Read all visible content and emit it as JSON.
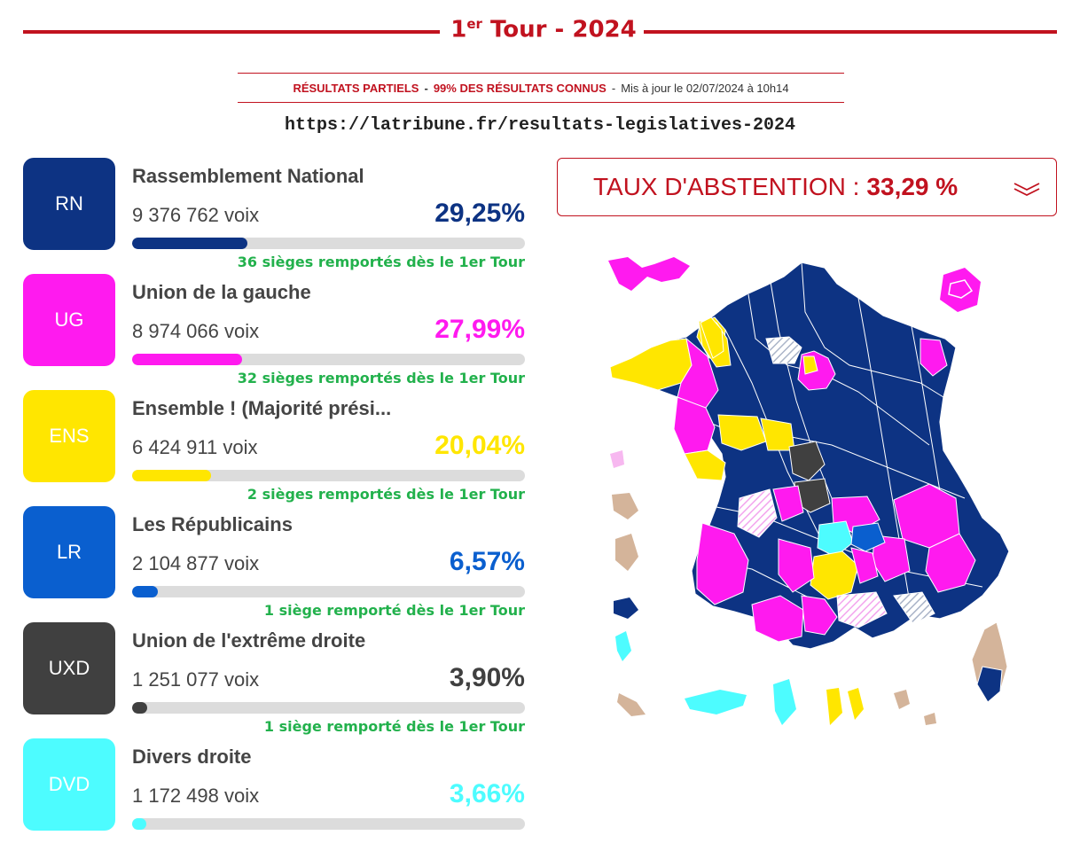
{
  "header": {
    "title_prefix": "1",
    "title_sup": "er",
    "title_suffix": " Tour - 2024",
    "status_partial": "RÉSULTATS PARTIELS",
    "status_sep1": "-",
    "status_known": "99% DES RÉSULTATS CONNUS",
    "status_sep2": "-",
    "status_updated": "Mis à jour le 02/07/2024 à 10h14",
    "url": "https://latribune.fr/resultats-legislatives-2024"
  },
  "abstention": {
    "label": "TAUX D'ABSTENTION :",
    "value": "33,29 %"
  },
  "parties": [
    {
      "abbr": "RN",
      "name": "Rassemblement National",
      "votes": "9 376 762 voix",
      "pct": "29,25%",
      "pct_value": 29.25,
      "seats": "36 sièges remportés dès le 1er Tour",
      "color": "#0d3383"
    },
    {
      "abbr": "UG",
      "name": "Union de la gauche",
      "votes": "8 974 066 voix",
      "pct": "27,99%",
      "pct_value": 27.99,
      "seats": "32 sièges remportés dès le 1er Tour",
      "color": "#ff1aef"
    },
    {
      "abbr": "ENS",
      "name": "Ensemble ! (Majorité prési...",
      "votes": "6 424 911 voix",
      "pct": "20,04%",
      "pct_value": 20.04,
      "seats": "2 sièges remportés dès le 1er Tour",
      "color": "#ffe600"
    },
    {
      "abbr": "LR",
      "name": "Les Républicains",
      "votes": "2 104 877 voix",
      "pct": "6,57%",
      "pct_value": 6.57,
      "seats": "1 siège remporté dès le 1er Tour",
      "color": "#0a5fcf"
    },
    {
      "abbr": "UXD",
      "name": "Union de l'extrême droite",
      "votes": "1 251 077 voix",
      "pct": "3,90%",
      "pct_value": 3.9,
      "seats": "1 siège remporté dès le 1er Tour",
      "color": "#404040"
    },
    {
      "abbr": "DVD",
      "name": "Divers droite",
      "votes": "1 172 498 voix",
      "pct": "3,66%",
      "pct_value": 3.66,
      "seats": "",
      "color": "#4dfcff"
    }
  ],
  "colors": {
    "accent": "#c1121f",
    "seat_text": "#22b14c",
    "bar_bg": "#dcdcdc"
  }
}
